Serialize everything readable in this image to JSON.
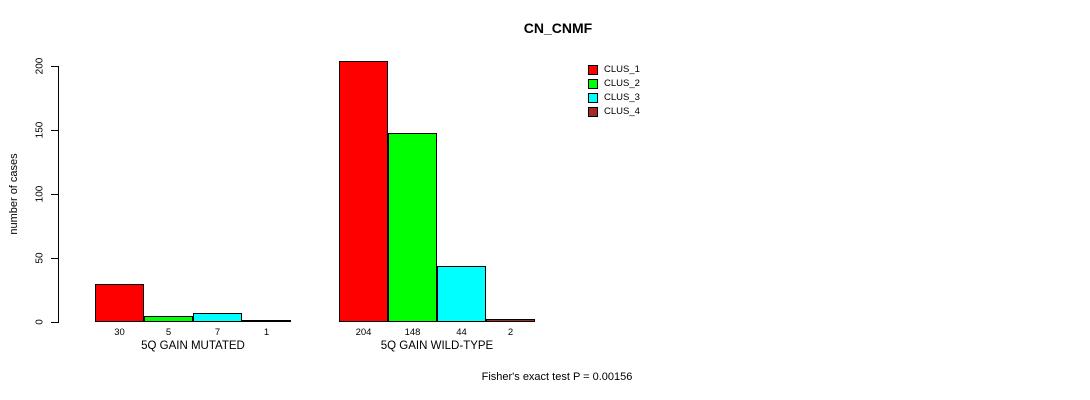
{
  "chart_data": {
    "type": "bar",
    "title": "CN_CNMF",
    "ylabel": "number of cases",
    "xlabel": "",
    "categories": [
      "5Q GAIN MUTATED",
      "5Q GAIN WILD-TYPE"
    ],
    "series": [
      {
        "name": "CLUS_1",
        "color": "#FF0000",
        "values": [
          30,
          204
        ]
      },
      {
        "name": "CLUS_2",
        "color": "#00FF00",
        "values": [
          5,
          148
        ]
      },
      {
        "name": "CLUS_3",
        "color": "#00FFFF",
        "values": [
          7,
          44
        ]
      },
      {
        "name": "CLUS_4",
        "color": "#A52A2A",
        "values": [
          1,
          2
        ]
      }
    ],
    "yticks": [
      0,
      50,
      100,
      150,
      200
    ],
    "ylim": [
      0,
      210
    ],
    "grid": false,
    "bar_value_labels_shown": true,
    "legend_position": "top-right",
    "annotation": "Fisher's exact test P = 0.00156"
  }
}
